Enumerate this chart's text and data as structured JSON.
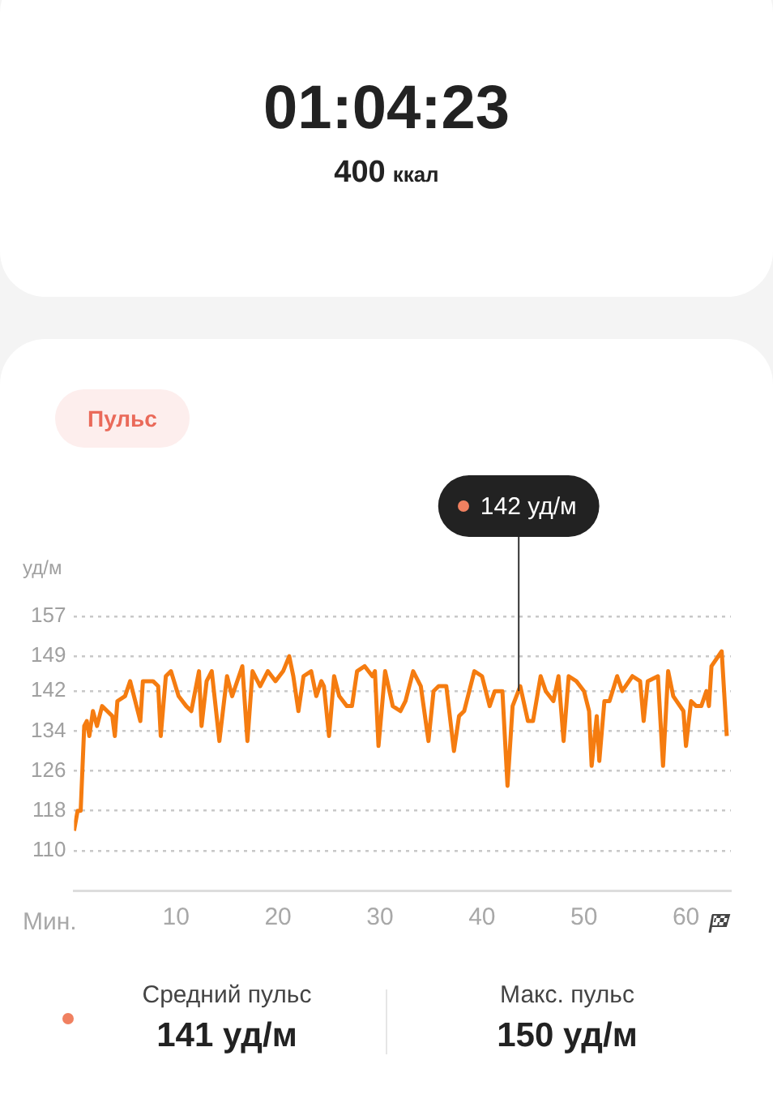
{
  "chart_data": {
    "type": "line",
    "title": "Пульс",
    "xlabel": "Мин.",
    "ylabel": "уд/м",
    "annotations": [
      "01:04:23",
      "400",
      "ккал",
      {
        "text": "142 уд/м",
        "x": 43.6,
        "y": 142
      },
      "Средний пульс",
      "141 уд/м",
      "Макс. пульс",
      "150 уд/м"
    ],
    "x": [
      0,
      0.35,
      0.65,
      1,
      1.25,
      1.5,
      1.85,
      2.25,
      2.75,
      3.25,
      3.75,
      4,
      4.25,
      5,
      5.5,
      5.75,
      6.5,
      6.75,
      7.75,
      8.25,
      8.5,
      9,
      9.5,
      10.25,
      11,
      11.5,
      12.25,
      12.5,
      13,
      13.5,
      14.25,
      15,
      15.5,
      16.5,
      17,
      17.5,
      18.25,
      19,
      19.75,
      20.5,
      21.1,
      21.5,
      22,
      22.5,
      23.25,
      23.75,
      24.25,
      24.5,
      25,
      25.5,
      26,
      26.75,
      27.25,
      27.75,
      28.5,
      29.25,
      29.5,
      29.85,
      30.5,
      31.25,
      32,
      32.5,
      33.25,
      34,
      34.75,
      35.25,
      35.75,
      36.5,
      37.25,
      37.75,
      38.25,
      38.75,
      39.25,
      40,
      40.75,
      41.25,
      42,
      42.5,
      43,
      43.75,
      44.5,
      45,
      45.75,
      46.25,
      47,
      47.5,
      48,
      48.5,
      49.25,
      50,
      50.5,
      50.75,
      51.25,
      51.5,
      52,
      52.5,
      53.25,
      53.75,
      54.75,
      55.5,
      55.85,
      56.25,
      57.25,
      57.75,
      58.25,
      58.75,
      59.75,
      60,
      60.5,
      61,
      61.5,
      62,
      62.25,
      62.5,
      63.5,
      64
    ],
    "series": [
      {
        "color": "#f57c10",
        "values": [
          114,
          118,
          118,
          135,
          136,
          133,
          138,
          135,
          139,
          138,
          137,
          133,
          140,
          141,
          144,
          142,
          136,
          144,
          144,
          143,
          133,
          145,
          146,
          141,
          139,
          138,
          146,
          135,
          144,
          146,
          132,
          145,
          141,
          147,
          132,
          146,
          143,
          146,
          144,
          146,
          149,
          145,
          138,
          145,
          146,
          141,
          144,
          143,
          133,
          145,
          141,
          139,
          139,
          146,
          147,
          145,
          146,
          131,
          146,
          139,
          138,
          140,
          146,
          143,
          132,
          142,
          143,
          143,
          130,
          137,
          138,
          142,
          146,
          145,
          139,
          142,
          142,
          123,
          139,
          143,
          136,
          136,
          145,
          142,
          140,
          145,
          132,
          145,
          144,
          142,
          138,
          127,
          137,
          128,
          140,
          140,
          145,
          142,
          145,
          144,
          136,
          144,
          145,
          127,
          146,
          141,
          138,
          131,
          140,
          139,
          139,
          142,
          139,
          147,
          150,
          133
        ]
      }
    ],
    "xlim": [
      0,
      64.4
    ],
    "xticks": [
      10,
      20,
      30,
      40,
      50,
      60
    ],
    "ylim": [
      102,
      157
    ],
    "yticks": [
      110,
      118,
      126,
      134,
      142,
      149,
      157
    ],
    "grid": "y",
    "marker": "none",
    "line_style": "solid"
  }
}
